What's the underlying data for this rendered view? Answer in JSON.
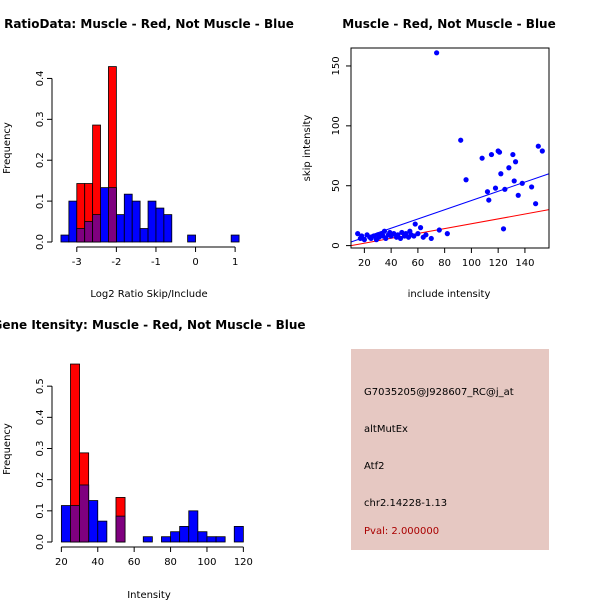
{
  "chart_data": [
    {
      "type": "histogram",
      "title": "RatioData: Muscle - Red, Not Muscle - Blue",
      "xlabel": "Log2 Ratio Skip/Include",
      "ylabel": "Frequency",
      "xlim": [
        -3.5,
        1.3
      ],
      "ylim": [
        0,
        0.45
      ],
      "x_ticks": [
        -3,
        -2,
        -1,
        0,
        1
      ],
      "x_tick_labels": [
        "-3",
        "-2",
        "-1",
        "0",
        "1"
      ],
      "y_ticks": [
        0,
        0.1,
        0.2,
        0.3,
        0.4
      ],
      "y_tick_labels": [
        "0.0",
        "0.1",
        "0.2",
        "0.3",
        "0.4"
      ],
      "bin_width": 0.2,
      "series": [
        {
          "name": "Not Muscle",
          "color": "#0000ff",
          "bins": [
            {
              "start": -3.4,
              "value": 0.017
            },
            {
              "start": -3.2,
              "value": 0.1
            },
            {
              "start": -3.0,
              "value": 0.033
            },
            {
              "start": -2.8,
              "value": 0.05
            },
            {
              "start": -2.6,
              "value": 0.067
            },
            {
              "start": -2.4,
              "value": 0.133
            },
            {
              "start": -2.2,
              "value": 0.133
            },
            {
              "start": -2.0,
              "value": 0.067
            },
            {
              "start": -1.8,
              "value": 0.117
            },
            {
              "start": -1.6,
              "value": 0.1
            },
            {
              "start": -1.4,
              "value": 0.033
            },
            {
              "start": -1.2,
              "value": 0.1
            },
            {
              "start": -1.0,
              "value": 0.083
            },
            {
              "start": -0.8,
              "value": 0.067
            },
            {
              "start": -0.2,
              "value": 0.017
            },
            {
              "start": 0.9,
              "value": 0.017
            }
          ]
        },
        {
          "name": "Muscle",
          "color": "#ff0000",
          "overlap_color": "#7f007f",
          "bins": [
            {
              "start": -3.0,
              "value": 0.143
            },
            {
              "start": -2.8,
              "value": 0.143
            },
            {
              "start": -2.6,
              "value": 0.286
            },
            {
              "start": -2.2,
              "value": 0.429
            }
          ]
        }
      ]
    },
    {
      "type": "scatter",
      "title": "Muscle - Red, Not Muscle - Blue",
      "xlabel": "include intensity",
      "ylabel": "skip intensity",
      "xlim": [
        10,
        158
      ],
      "ylim": [
        -2,
        165
      ],
      "x_ticks": [
        20,
        40,
        60,
        80,
        100,
        120,
        140
      ],
      "x_tick_labels": [
        "20",
        "40",
        "60",
        "80",
        "100",
        "120",
        "140"
      ],
      "y_ticks": [
        0,
        50,
        100,
        150
      ],
      "y_tick_labels": [
        "0",
        "50",
        "100",
        "150"
      ],
      "point_color": "#0000ff",
      "points": [
        [
          15,
          10
        ],
        [
          17,
          6
        ],
        [
          18,
          8
        ],
        [
          20,
          5
        ],
        [
          22,
          9
        ],
        [
          24,
          7
        ],
        [
          25,
          6
        ],
        [
          27,
          8
        ],
        [
          29,
          5
        ],
        [
          30,
          9
        ],
        [
          31,
          7
        ],
        [
          33,
          10
        ],
        [
          34,
          8
        ],
        [
          35,
          12
        ],
        [
          36,
          6
        ],
        [
          38,
          9
        ],
        [
          39,
          11
        ],
        [
          40,
          8
        ],
        [
          42,
          10
        ],
        [
          44,
          7
        ],
        [
          45,
          9
        ],
        [
          47,
          6
        ],
        [
          48,
          11
        ],
        [
          50,
          8
        ],
        [
          51,
          10
        ],
        [
          53,
          7
        ],
        [
          54,
          12
        ],
        [
          55,
          9
        ],
        [
          57,
          8
        ],
        [
          58,
          18
        ],
        [
          60,
          10
        ],
        [
          62,
          15
        ],
        [
          64,
          7
        ],
        [
          66,
          9
        ],
        [
          70,
          6
        ],
        [
          74,
          161
        ],
        [
          76,
          13
        ],
        [
          82,
          10
        ],
        [
          92,
          88
        ],
        [
          96,
          55
        ],
        [
          108,
          73
        ],
        [
          112,
          45
        ],
        [
          113,
          38
        ],
        [
          115,
          76
        ],
        [
          118,
          48
        ],
        [
          120,
          79
        ],
        [
          121,
          78
        ],
        [
          122,
          60
        ],
        [
          124,
          14
        ],
        [
          125,
          47
        ],
        [
          128,
          65
        ],
        [
          131,
          76
        ],
        [
          132,
          54
        ],
        [
          133,
          70
        ],
        [
          135,
          42
        ],
        [
          138,
          52
        ],
        [
          145,
          49
        ],
        [
          148,
          35
        ],
        [
          150,
          83
        ],
        [
          153,
          79
        ]
      ],
      "lines": [
        {
          "name": "Not Muscle fit",
          "color": "#0000ff",
          "from": [
            10,
            3
          ],
          "to": [
            158,
            60
          ]
        },
        {
          "name": "Muscle fit",
          "color": "#ff0000",
          "from": [
            10,
            0
          ],
          "to": [
            158,
            30
          ]
        }
      ]
    },
    {
      "type": "histogram",
      "title": "Gene Itensity: Muscle - Red, Not Muscle - Blue",
      "xlabel": "Intensity",
      "ylabel": "Frequency",
      "xlim": [
        17.6,
        122
      ],
      "ylim": [
        0,
        0.6
      ],
      "x_ticks": [
        20,
        40,
        60,
        80,
        100,
        120
      ],
      "x_tick_labels": [
        "20",
        "40",
        "60",
        "80",
        "100",
        "120"
      ],
      "y_ticks": [
        0,
        0.1,
        0.2,
        0.3,
        0.4,
        0.5
      ],
      "y_tick_labels": [
        "0.0",
        "0.1",
        "0.2",
        "0.3",
        "0.4",
        "0.5"
      ],
      "bin_width": 5,
      "series": [
        {
          "name": "Not Muscle",
          "color": "#0000ff",
          "bins": [
            {
              "start": 20,
              "value": 0.117
            },
            {
              "start": 25,
              "value": 0.117
            },
            {
              "start": 30,
              "value": 0.183
            },
            {
              "start": 35,
              "value": 0.133
            },
            {
              "start": 40,
              "value": 0.067
            },
            {
              "start": 50,
              "value": 0.083
            },
            {
              "start": 65,
              "value": 0.017
            },
            {
              "start": 75,
              "value": 0.017
            },
            {
              "start": 80,
              "value": 0.033
            },
            {
              "start": 85,
              "value": 0.05
            },
            {
              "start": 90,
              "value": 0.1
            },
            {
              "start": 95,
              "value": 0.033
            },
            {
              "start": 100,
              "value": 0.017
            },
            {
              "start": 105,
              "value": 0.017
            },
            {
              "start": 115,
              "value": 0.05
            }
          ]
        },
        {
          "name": "Muscle",
          "color": "#ff0000",
          "overlap_color": "#7f007f",
          "bins": [
            {
              "start": 25,
              "value": 0.571
            },
            {
              "start": 30,
              "value": 0.286
            },
            {
              "start": 50,
              "value": 0.143
            }
          ]
        }
      ]
    }
  ],
  "info_panel": {
    "probe_id": "G7035205@J928607_RC@j_at",
    "event_type": "altMutEx",
    "gene": "Atf2",
    "location": "chr2.14228-1.13",
    "pval": "Pval: 2.000000",
    "pval_color": "#aa0000",
    "background": "#e6c8c2"
  }
}
